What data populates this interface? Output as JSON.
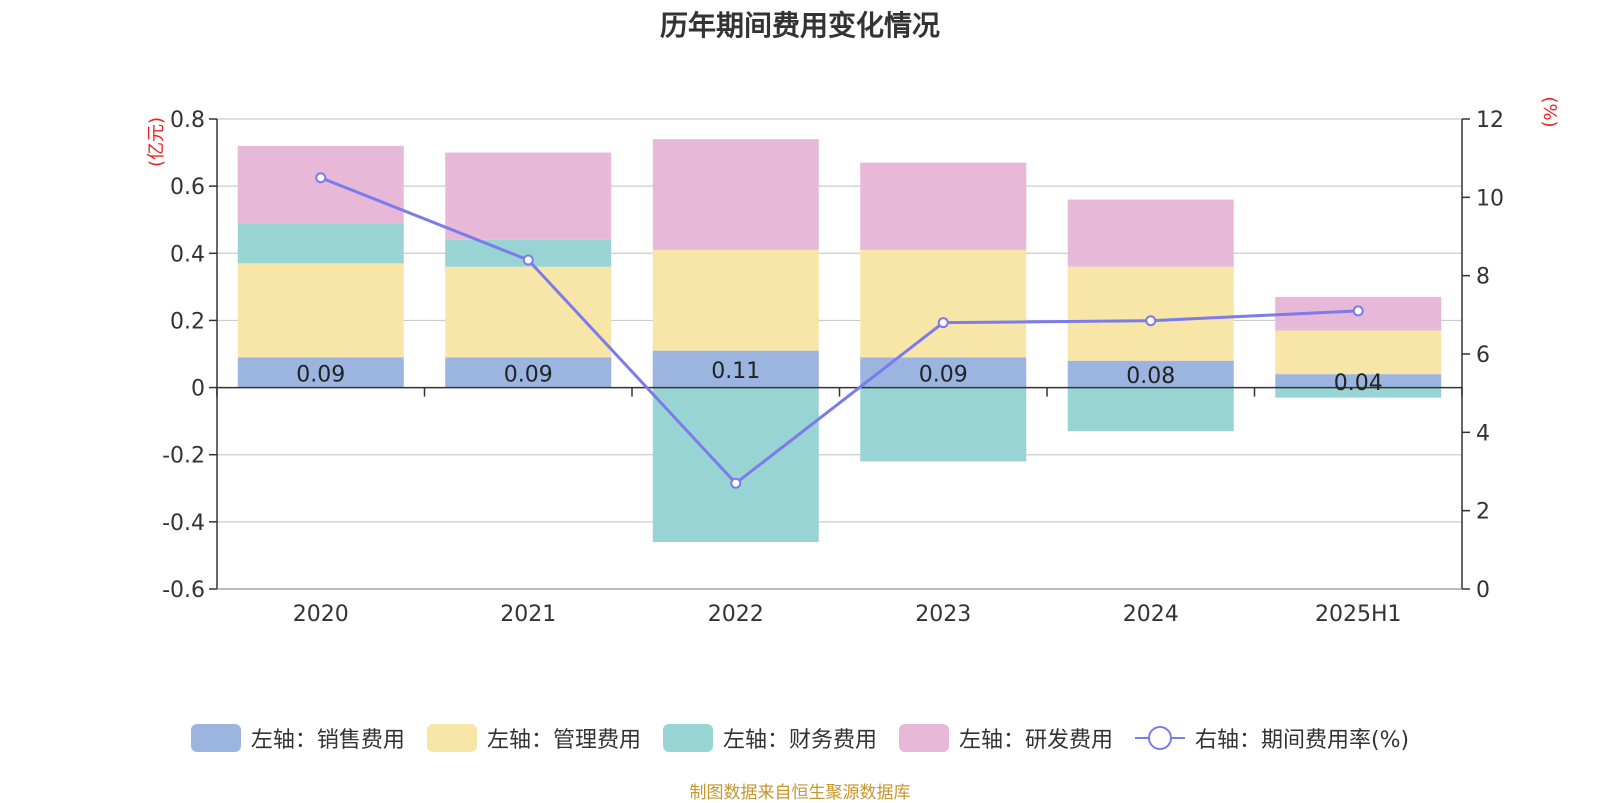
{
  "chart_data": {
    "type": "bar",
    "title": "历年期间费用变化情况",
    "categories": [
      "2020",
      "2021",
      "2022",
      "2023",
      "2024",
      "2025H1"
    ],
    "left_axis": {
      "unit": "(亿元)",
      "ticks": [
        "0.8",
        "0.6",
        "0.4",
        "0.2",
        "0",
        "-0.2",
        "-0.4",
        "-0.6"
      ],
      "ylim": [
        -0.6,
        0.8
      ]
    },
    "right_axis": {
      "unit": "(%)",
      "ticks": [
        "12",
        "10",
        "8",
        "6",
        "4",
        "2",
        "0"
      ],
      "ylim": [
        0,
        12
      ]
    },
    "series": [
      {
        "name": "左轴：销售费用",
        "type": "bar",
        "axis": "left",
        "color": "#9cb4e0",
        "values": [
          0.09,
          0.09,
          0.11,
          0.09,
          0.08,
          0.04
        ],
        "labels": [
          "0.09",
          "0.09",
          "0.11",
          "0.09",
          "0.08",
          "0.04"
        ]
      },
      {
        "name": "左轴：管理费用",
        "type": "bar",
        "axis": "left",
        "color": "#f8e6a8",
        "values": [
          0.28,
          0.27,
          0.3,
          0.32,
          0.28,
          0.13
        ]
      },
      {
        "name": "左轴：财务费用",
        "type": "bar",
        "axis": "left",
        "color": "#98d4d4",
        "values": [
          0.12,
          0.08,
          -0.46,
          -0.22,
          -0.13,
          -0.03
        ]
      },
      {
        "name": "左轴：研发费用",
        "type": "bar",
        "axis": "left",
        "color": "#e8b8d8",
        "values": [
          0.23,
          0.26,
          0.33,
          0.26,
          0.2,
          0.1
        ]
      },
      {
        "name": "右轴：期间费用率(%)",
        "type": "line",
        "axis": "right",
        "color": "#7b7bea",
        "values": [
          10.5,
          8.4,
          2.7,
          6.8,
          6.85,
          7.1
        ]
      }
    ],
    "grid": true,
    "legend_position": "bottom"
  },
  "footer": {
    "source": "制图数据来自恒生聚源数据库"
  }
}
